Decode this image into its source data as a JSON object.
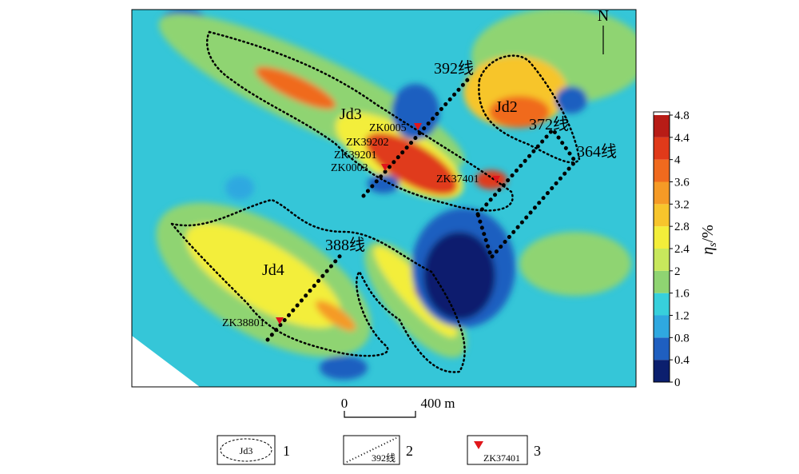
{
  "map": {
    "north": "N",
    "zones": [
      "Jd3",
      "Jd2",
      "Jd4"
    ],
    "lines": [
      "392线",
      "372线",
      "364线",
      "388线"
    ],
    "boreholes": [
      "ZK0005",
      "ZK39202",
      "ZK39201",
      "ZK0003",
      "ZK37401",
      "ZK38801"
    ]
  },
  "colorbar": {
    "label_symbol": "η",
    "label_sub": "s",
    "label_unit": "/%",
    "ticks": [
      0,
      0.4,
      0.8,
      1.2,
      1.6,
      2.0,
      2.4,
      2.8,
      3.2,
      3.6,
      4.0,
      4.4,
      4.8
    ],
    "colors": [
      "#0b1f6e",
      "#1f5fc0",
      "#2fa8e0",
      "#37d0dc",
      "#8fd472",
      "#c8e85c",
      "#f3ee3a",
      "#f7c52c",
      "#f59a26",
      "#f06a1e",
      "#e03a1a",
      "#b81c16"
    ]
  },
  "scale_bar": {
    "start": "0",
    "end": "400 m"
  },
  "legend": [
    {
      "number": "1",
      "sample": "Jd3"
    },
    {
      "number": "2",
      "sample": "392线"
    },
    {
      "number": "3",
      "sample": "ZK37401"
    }
  ]
}
